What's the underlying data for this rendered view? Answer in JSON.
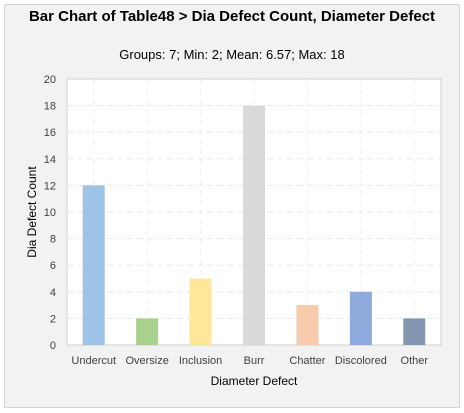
{
  "chart_data": {
    "type": "bar",
    "title": "Bar Chart of Table48 > Dia Defect Count, Diameter Defect",
    "subtitle": "Groups: 7; Min: 2; Mean: 6.57; Max: 18",
    "xlabel": "Diameter Defect",
    "ylabel": "Dia Defect Count",
    "categories": [
      "Undercut",
      "Oversize",
      "Inclusion",
      "Burr",
      "Chatter",
      "Discolored",
      "Other"
    ],
    "values": [
      12,
      2,
      5,
      18,
      3,
      4,
      2
    ],
    "colors": [
      "#9dc3e6",
      "#a9d18e",
      "#ffe699",
      "#d9d9d9",
      "#f8cbad",
      "#8faadc",
      "#8497b0"
    ],
    "ylim": [
      0,
      20
    ],
    "yticks": [
      "0",
      "2",
      "4",
      "6",
      "8",
      "10",
      "12",
      "14",
      "16",
      "18",
      "20"
    ],
    "grid": true
  }
}
